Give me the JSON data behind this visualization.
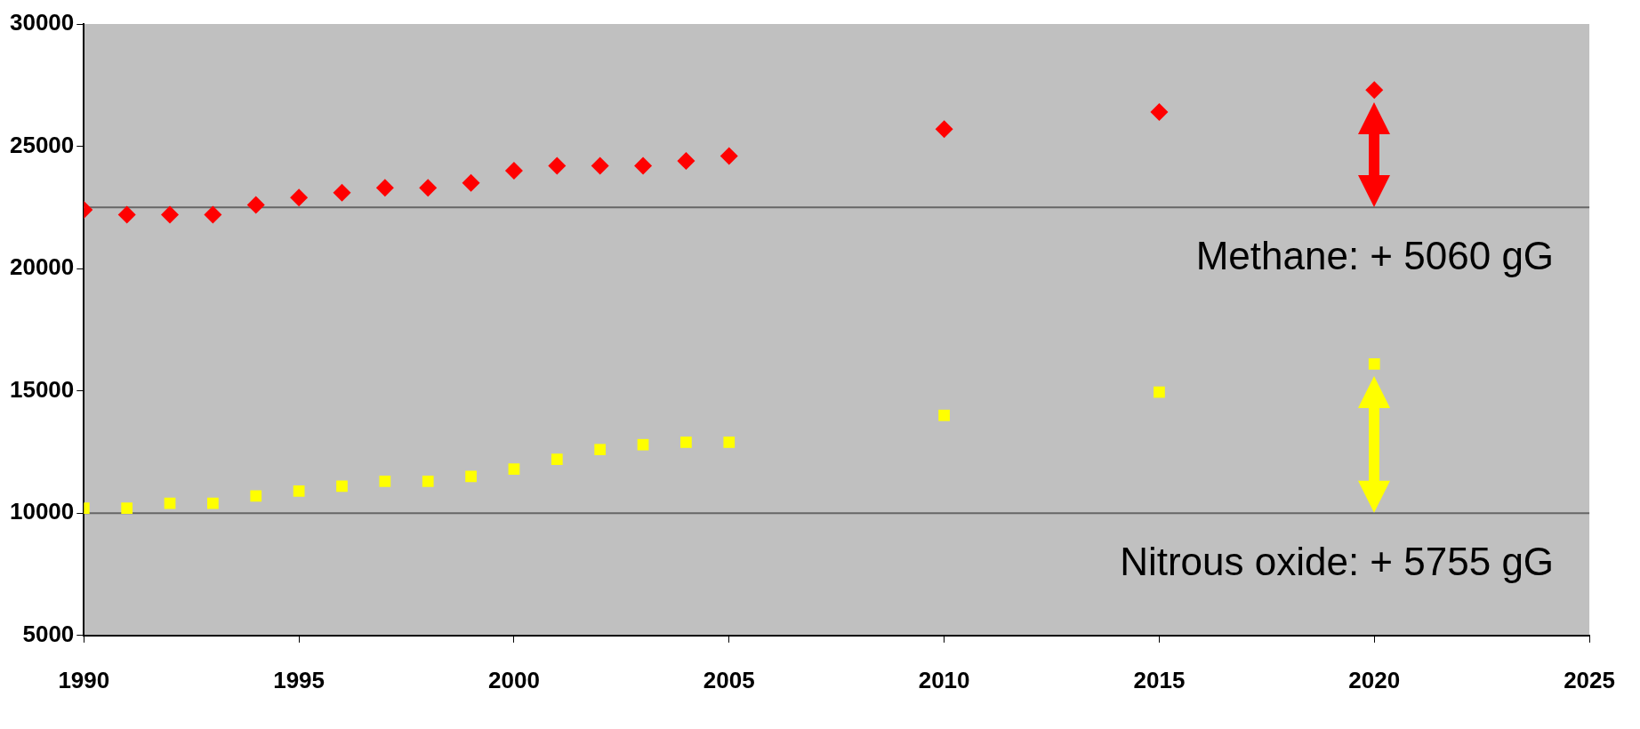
{
  "chart_data": {
    "type": "scatter",
    "x": [
      1990,
      1991,
      1992,
      1993,
      1994,
      1995,
      1996,
      1997,
      1998,
      1999,
      2000,
      2001,
      2002,
      2003,
      2004,
      2005,
      2010,
      2015,
      2020
    ],
    "series": [
      {
        "color": "#ff0000",
        "marker": "diamond",
        "values": [
          22400,
          22200,
          22200,
          22200,
          22600,
          22900,
          23100,
          23300,
          23300,
          23500,
          24000,
          24200,
          24200,
          24200,
          24400,
          24600,
          25700,
          26400,
          27300
        ]
      },
      {
        "color": "#ffff00",
        "marker": "square",
        "values": [
          10200,
          10200,
          10400,
          10400,
          10700,
          10900,
          11100,
          11300,
          11300,
          11500,
          11800,
          12200,
          12600,
          12800,
          12900,
          12900,
          14000,
          14950,
          16100
        ]
      }
    ],
    "xlim": [
      1990,
      2025
    ],
    "xticks": [
      1990,
      1995,
      2000,
      2005,
      2010,
      2015,
      2020,
      2025
    ],
    "ylim": [
      5000,
      30000
    ],
    "yticks": [
      5000,
      10000,
      15000,
      20000,
      25000,
      30000
    ],
    "ref_lines": [
      {
        "axis": "y",
        "value": 22500,
        "color": "#666666"
      },
      {
        "axis": "y",
        "value": 10000,
        "color": "#666666"
      }
    ],
    "annotations": [
      "Methane: + 5060 gG",
      "Nitrous oxide: + 5755 gG"
    ],
    "grid": false,
    "legend": false
  }
}
